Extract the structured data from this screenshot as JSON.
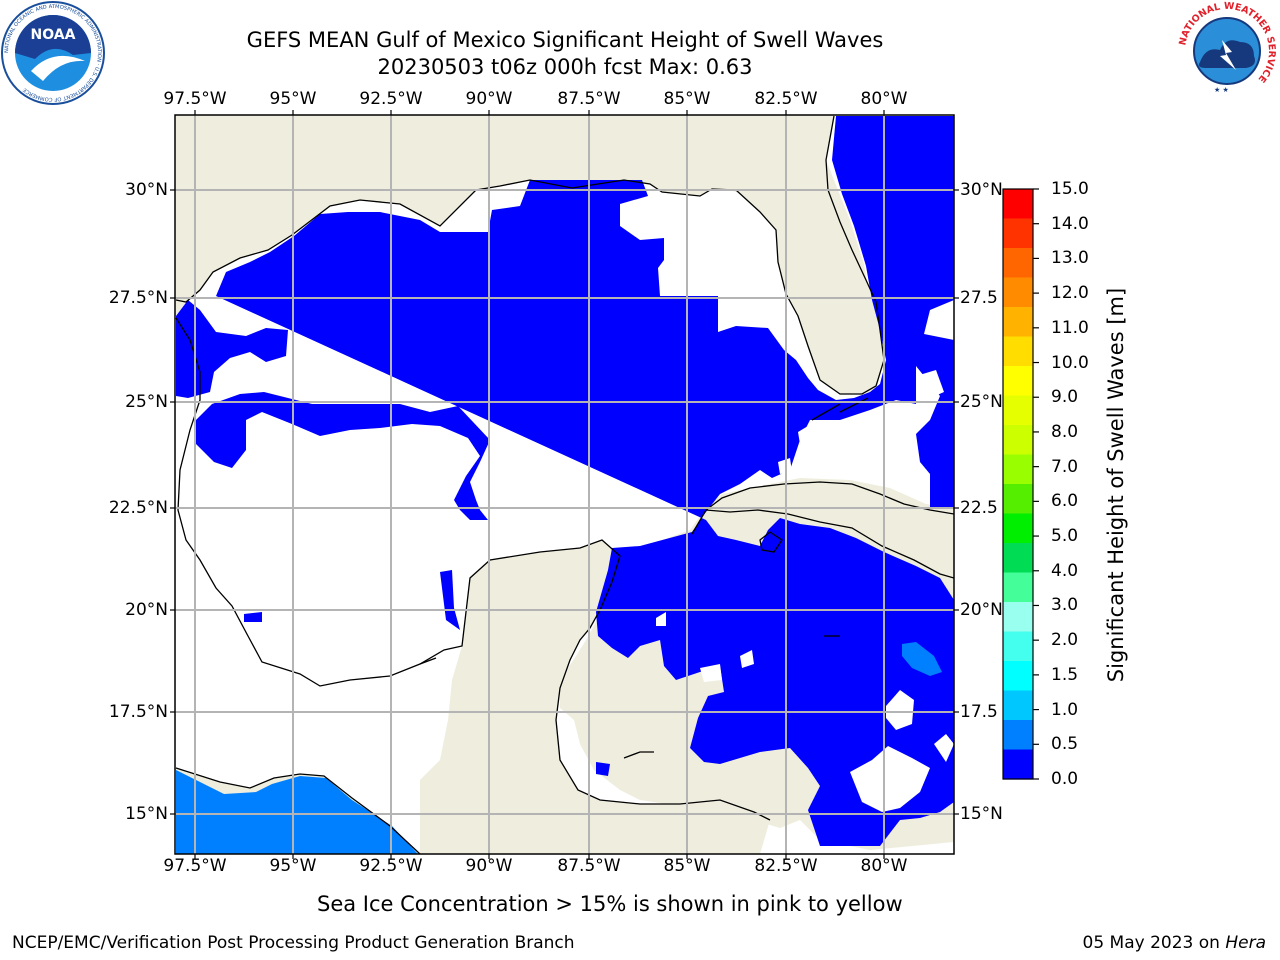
{
  "header": {
    "title_line1": "GEFS MEAN Gulf of Mexico Significant Height of Swell Waves",
    "title_line2": "20230503 t06z 000h fcst   Max: 0.63"
  },
  "map": {
    "lon_labels": [
      "97.5°W",
      "95°W",
      "92.5°W",
      "90°W",
      "87.5°W",
      "85°W",
      "82.5°W",
      "80°W"
    ],
    "lat_labels": [
      "30°N",
      "27.5°N",
      "25°N",
      "22.5°N",
      "20°N",
      "17.5°N",
      "15°N"
    ],
    "lat_labels_right": [
      "30°N",
      "27.5",
      "25°N",
      "22.5",
      "20°N",
      "17.5",
      "15°N"
    ],
    "colors": {
      "land": "#efeede",
      "ocean_low": "#0000ff",
      "ocean_mid": "#0080ff",
      "nodata": "#ffffff",
      "grid": "#b4b4b4"
    }
  },
  "colorbar": {
    "label": "Significant Height of Swell Waves [m]",
    "ticks": [
      "15.0",
      "14.0",
      "13.0",
      "12.0",
      "11.0",
      "10.0",
      "9.0",
      "8.0",
      "7.0",
      "6.0",
      "5.0",
      "4.0",
      "3.0",
      "2.0",
      "1.5",
      "1.0",
      "0.5",
      "0.0"
    ],
    "colors": [
      "#ff0000",
      "#ff3300",
      "#ff6600",
      "#ff8c00",
      "#ffb300",
      "#ffdd00",
      "#ffff00",
      "#e6ff00",
      "#ccff00",
      "#99ff00",
      "#55ee00",
      "#00ee00",
      "#00dd55",
      "#44ff99",
      "#99ffee",
      "#44ffee",
      "#00ffff",
      "#00c8ff",
      "#0080ff",
      "#0000ff"
    ]
  },
  "note": "Sea Ice Concentration > 15% is shown in pink to yellow",
  "footer": {
    "left": "NCEP/EMC/Verification Post Processing Product Generation Branch",
    "right_date": "05 May 2023 on ",
    "right_host": "Hera"
  },
  "logos": {
    "noaa_text": "NOAA",
    "noaa_ring": "NATIONAL OCEANIC AND ATMOSPHERIC ADMINISTRATION · U.S. DEPARTMENT OF COMMERCE",
    "nws_ring": "NATIONAL WEATHER SERVICE"
  }
}
